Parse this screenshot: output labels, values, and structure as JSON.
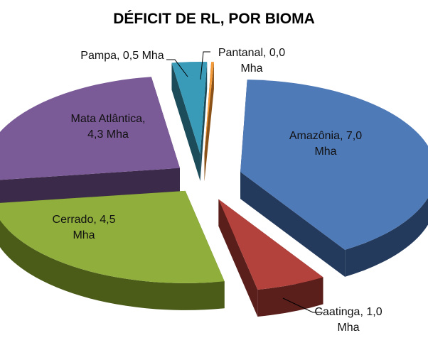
{
  "chart_data": {
    "type": "pie",
    "title": "DÉFICIT DE RL, POR BIOMA",
    "unit": "Mha",
    "slices": [
      {
        "name": "Amazônia",
        "value": 7.0,
        "label_line1": "Amazônia, 7,0",
        "label_line2": "Mha",
        "color": "#4f7ab8",
        "side": "#243a5c"
      },
      {
        "name": "Caatinga",
        "value": 1.0,
        "label_line1": "Caatinga, 1,0",
        "label_line2": "Mha",
        "color": "#b3423d",
        "side": "#5a1e1b"
      },
      {
        "name": "Cerrado",
        "value": 4.5,
        "label_line1": "Cerrado, 4,5",
        "label_line2": "Mha",
        "color": "#8fae3b",
        "side": "#4a5c18"
      },
      {
        "name": "Mata Atlântica",
        "value": 4.3,
        "label_line1": "Mata Atlântica,",
        "label_line2": "4,3 Mha",
        "color": "#7b5a98",
        "side": "#3b2a4a"
      },
      {
        "name": "Pampa",
        "value": 0.5,
        "label_line1": "Pampa, 0,5 Mha",
        "label_line2": "",
        "color": "#3a9bb8",
        "side": "#1c4c5a"
      },
      {
        "name": "Pantanal",
        "value": 0.0,
        "label_line1": "Pantanal, 0,0",
        "label_line2": "Mha",
        "color": "#f39b3a",
        "side": "#8a5218"
      }
    ],
    "legend": "none",
    "style": "3d exploded pie"
  }
}
